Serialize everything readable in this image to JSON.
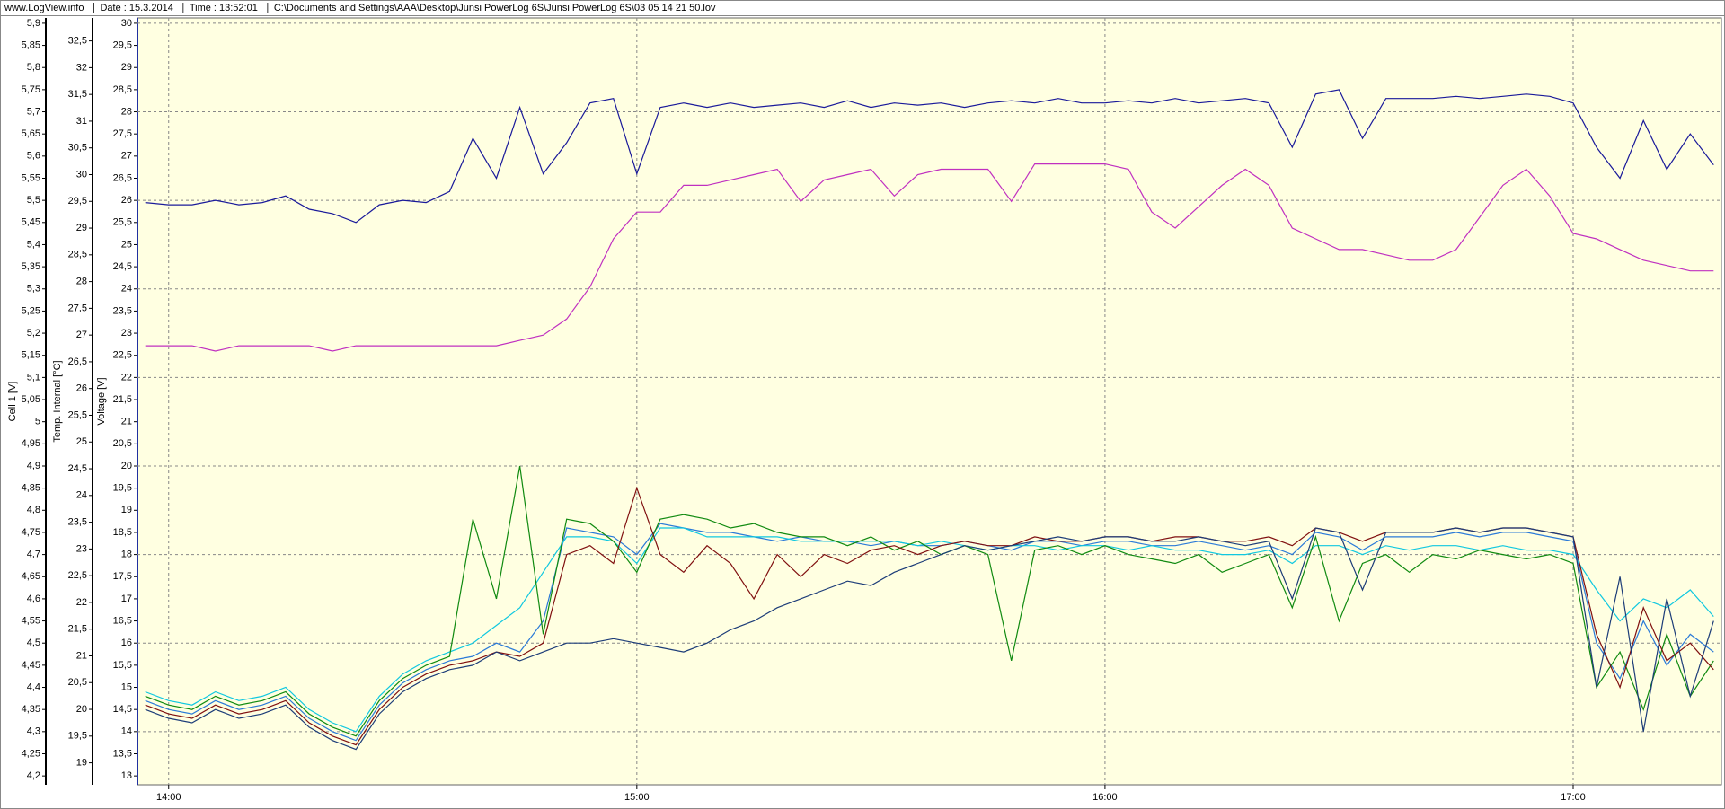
{
  "chart_data": {
    "type": "line",
    "header": [
      "www.LogView.info",
      "Date : 15.3.2014",
      "Time : 13:52:01",
      "C:\\Documents and Settings\\AAA\\Desktop\\Junsi PowerLog 6S\\Junsi PowerLog 6S\\03 05 14 21 50.lov"
    ],
    "background": "#ffffe1",
    "grid": true,
    "x": [
      "13:57",
      "14:00",
      "14:03",
      "14:06",
      "14:09",
      "14:12",
      "14:15",
      "14:18",
      "14:21",
      "14:24",
      "14:27",
      "14:30",
      "14:33",
      "14:36",
      "14:39",
      "14:42",
      "14:45",
      "14:48",
      "14:51",
      "14:54",
      "14:57",
      "15:00",
      "15:03",
      "15:06",
      "15:09",
      "15:12",
      "15:15",
      "15:18",
      "15:21",
      "15:24",
      "15:27",
      "15:30",
      "15:33",
      "15:36",
      "15:39",
      "15:42",
      "15:45",
      "15:48",
      "15:51",
      "15:54",
      "15:57",
      "16:00",
      "16:03",
      "16:06",
      "16:09",
      "16:12",
      "16:15",
      "16:18",
      "16:21",
      "16:24",
      "16:27",
      "16:30",
      "16:33",
      "16:36",
      "16:39",
      "16:42",
      "16:45",
      "16:48",
      "16:51",
      "16:54",
      "16:57",
      "17:00",
      "17:03",
      "17:06",
      "17:09",
      "17:12",
      "17:15",
      "17:18"
    ],
    "xlim": [
      "13:56",
      "17:19"
    ],
    "xticks": [
      "14:00",
      "15:00",
      "16:00",
      "17:00"
    ],
    "axes": [
      {
        "label": "Cell 1 [V]",
        "color": "#2a8ad0",
        "ylim": [
          4.18,
          5.912
        ],
        "yticks": [
          {
            "value": 4.2,
            "label": "4,2"
          },
          {
            "value": 4.25,
            "label": "4,25"
          },
          {
            "value": 4.3,
            "label": "4,3"
          },
          {
            "value": 4.35,
            "label": "4,35"
          },
          {
            "value": 4.4,
            "label": "4,4"
          },
          {
            "value": 4.45,
            "label": "4,45"
          },
          {
            "value": 4.5,
            "label": "4,5"
          },
          {
            "value": 4.55,
            "label": "4,55"
          },
          {
            "value": 4.6,
            "label": "4,6"
          },
          {
            "value": 4.65,
            "label": "4,65"
          },
          {
            "value": 4.7,
            "label": "4,7"
          },
          {
            "value": 4.75,
            "label": "4,75"
          },
          {
            "value": 4.8,
            "label": "4,8"
          },
          {
            "value": 4.85,
            "label": "4,85"
          },
          {
            "value": 4.9,
            "label": "4,9"
          },
          {
            "value": 4.95,
            "label": "4,95"
          },
          5,
          {
            "value": 5.05,
            "label": "5,05"
          },
          {
            "value": 5.1,
            "label": "5,1"
          },
          {
            "value": 5.15,
            "label": "5,15"
          },
          {
            "value": 5.2,
            "label": "5,2"
          },
          {
            "value": 5.25,
            "label": "5,25"
          },
          {
            "value": 5.3,
            "label": "5,3"
          },
          {
            "value": 5.35,
            "label": "5,35"
          },
          {
            "value": 5.4,
            "label": "5,4"
          },
          {
            "value": 5.45,
            "label": "5,45"
          },
          {
            "value": 5.5,
            "label": "5,5"
          },
          {
            "value": 5.55,
            "label": "5,55"
          },
          {
            "value": 5.6,
            "label": "5,6"
          },
          {
            "value": 5.65,
            "label": "5,65"
          },
          {
            "value": 5.7,
            "label": "5,7"
          },
          {
            "value": 5.75,
            "label": "5,75"
          },
          {
            "value": 5.8,
            "label": "5,8"
          },
          {
            "value": 5.85,
            "label": "5,85"
          },
          {
            "value": 5.9,
            "label": "5,9"
          }
        ]
      },
      {
        "label": "Temp. Internal [°C]",
        "color": "#c030c0",
        "ylim": [
          18.59,
          32.93
        ],
        "yticks": [
          19,
          {
            "value": 19.5,
            "label": "19,5"
          },
          20,
          {
            "value": 20.5,
            "label": "20,5"
          },
          21,
          {
            "value": 21.5,
            "label": "21,5"
          },
          22,
          {
            "value": 22.5,
            "label": "22,5"
          },
          23,
          {
            "value": 23.5,
            "label": "23,5"
          },
          24,
          {
            "value": 24.5,
            "label": "24,5"
          },
          25,
          {
            "value": 25.5,
            "label": "25,5"
          },
          26,
          {
            "value": 26.5,
            "label": "26,5"
          },
          27,
          {
            "value": 27.5,
            "label": "27,5"
          },
          28,
          {
            "value": 28.5,
            "label": "28,5"
          },
          29,
          {
            "value": 29.5,
            "label": "29,5"
          },
          30,
          {
            "value": 30.5,
            "label": "30,5"
          },
          31,
          {
            "value": 31.5,
            "label": "31,5"
          },
          32,
          {
            "value": 32.5,
            "label": "32,5"
          }
        ]
      },
      {
        "label": "Voltage [V]",
        "color": "#2030a0",
        "ylim": [
          12.8,
          30.12
        ],
        "yticks": [
          13,
          {
            "value": 13.5,
            "label": "13,5"
          },
          14,
          {
            "value": 14.5,
            "label": "14,5"
          },
          15,
          {
            "value": 15.5,
            "label": "15,5"
          },
          16,
          {
            "value": 16.5,
            "label": "16,5"
          },
          17,
          {
            "value": 17.5,
            "label": "17,5"
          },
          18,
          {
            "value": 18.5,
            "label": "18,5"
          },
          19,
          {
            "value": 19.5,
            "label": "19,5"
          },
          20,
          {
            "value": 20.5,
            "label": "20,5"
          },
          21,
          {
            "value": 21.5,
            "label": "21,5"
          },
          22,
          {
            "value": 22.5,
            "label": "22,5"
          },
          23,
          {
            "value": 23.5,
            "label": "23,5"
          },
          24,
          {
            "value": 24.5,
            "label": "24,5"
          },
          25,
          {
            "value": 25.5,
            "label": "25,5"
          },
          26,
          {
            "value": 26.5,
            "label": "26,5"
          },
          27,
          {
            "value": 27.5,
            "label": "27,5"
          },
          28,
          {
            "value": 28.5,
            "label": "28,5"
          },
          29,
          {
            "value": 29.5,
            "label": "29,5"
          },
          30
        ]
      }
    ],
    "series": [
      {
        "color": "#2a7ad8",
        "axis": 0,
        "values": [
          4.37,
          4.35,
          4.34,
          4.37,
          4.35,
          4.36,
          4.38,
          4.33,
          4.3,
          4.28,
          4.36,
          4.41,
          4.44,
          4.46,
          4.47,
          4.5,
          4.48,
          4.55,
          4.76,
          4.75,
          4.74,
          4.7,
          4.77,
          4.76,
          4.75,
          4.75,
          4.74,
          4.73,
          4.74,
          4.73,
          4.73,
          4.72,
          4.73,
          4.72,
          4.72,
          4.73,
          4.72,
          4.71,
          4.73,
          4.73,
          4.72,
          4.73,
          4.73,
          4.72,
          4.72,
          4.73,
          4.72,
          4.71,
          4.72,
          4.7,
          4.75,
          4.74,
          4.71,
          4.74,
          4.74,
          4.74,
          4.75,
          4.74,
          4.75,
          4.75,
          4.74,
          4.73,
          4.5,
          4.42,
          4.55,
          4.45,
          4.52,
          4.48
        ]
      },
      {
        "color": "#10c8e0",
        "axis": 0,
        "values": [
          4.39,
          4.37,
          4.36,
          4.39,
          4.37,
          4.38,
          4.4,
          4.35,
          4.32,
          4.3,
          4.38,
          4.43,
          4.46,
          4.48,
          4.5,
          4.54,
          4.58,
          4.66,
          4.74,
          4.74,
          4.73,
          4.68,
          4.76,
          4.76,
          4.74,
          4.74,
          4.74,
          4.74,
          4.73,
          4.73,
          4.73,
          4.73,
          4.73,
          4.72,
          4.73,
          4.72,
          4.71,
          4.72,
          4.72,
          4.71,
          4.72,
          4.72,
          4.71,
          4.72,
          4.71,
          4.71,
          4.7,
          4.7,
          4.71,
          4.68,
          4.72,
          4.72,
          4.7,
          4.72,
          4.71,
          4.72,
          4.72,
          4.71,
          4.72,
          4.71,
          4.71,
          4.7,
          4.62,
          4.55,
          4.6,
          4.58,
          4.62,
          4.56
        ]
      },
      {
        "color": "#108a10",
        "axis": 0,
        "values": [
          4.38,
          4.36,
          4.35,
          4.38,
          4.36,
          4.37,
          4.39,
          4.34,
          4.31,
          4.29,
          4.37,
          4.42,
          4.45,
          4.47,
          4.78,
          4.6,
          4.9,
          4.52,
          4.78,
          4.77,
          4.73,
          4.66,
          4.78,
          4.79,
          4.78,
          4.76,
          4.77,
          4.75,
          4.74,
          4.74,
          4.72,
          4.74,
          4.71,
          4.73,
          4.7,
          4.72,
          4.7,
          4.46,
          4.71,
          4.72,
          4.7,
          4.72,
          4.7,
          4.69,
          4.68,
          4.7,
          4.66,
          4.68,
          4.7,
          4.58,
          4.74,
          4.55,
          4.68,
          4.7,
          4.66,
          4.7,
          4.69,
          4.71,
          4.7,
          4.69,
          4.7,
          4.68,
          4.4,
          4.48,
          4.35,
          4.52,
          4.38,
          4.46
        ]
      },
      {
        "color": "#801010",
        "axis": 0,
        "values": [
          4.36,
          4.34,
          4.33,
          4.36,
          4.34,
          4.35,
          4.37,
          4.32,
          4.29,
          4.27,
          4.35,
          4.4,
          4.43,
          4.45,
          4.46,
          4.48,
          4.47,
          4.5,
          4.7,
          4.72,
          4.68,
          4.85,
          4.7,
          4.66,
          4.72,
          4.68,
          4.6,
          4.7,
          4.65,
          4.7,
          4.68,
          4.71,
          4.72,
          4.7,
          4.72,
          4.73,
          4.72,
          4.72,
          4.74,
          4.73,
          4.73,
          4.74,
          4.74,
          4.73,
          4.74,
          4.74,
          4.73,
          4.73,
          4.74,
          4.72,
          4.76,
          4.75,
          4.73,
          4.75,
          4.75,
          4.75,
          4.76,
          4.75,
          4.76,
          4.76,
          4.75,
          4.74,
          4.52,
          4.4,
          4.58,
          4.46,
          4.5,
          4.44
        ]
      },
      {
        "color": "#1c3c78",
        "axis": 0,
        "values": [
          4.35,
          4.33,
          4.32,
          4.35,
          4.33,
          4.34,
          4.36,
          4.31,
          4.28,
          4.26,
          4.34,
          4.39,
          4.42,
          4.44,
          4.45,
          4.48,
          4.46,
          4.48,
          4.5,
          4.5,
          4.51,
          4.5,
          4.49,
          4.48,
          4.5,
          4.53,
          4.55,
          4.58,
          4.6,
          4.62,
          4.64,
          4.63,
          4.66,
          4.68,
          4.7,
          4.72,
          4.71,
          4.72,
          4.73,
          4.74,
          4.73,
          4.74,
          4.74,
          4.73,
          4.73,
          4.74,
          4.73,
          4.72,
          4.73,
          4.6,
          4.76,
          4.75,
          4.62,
          4.75,
          4.75,
          4.75,
          4.76,
          4.75,
          4.76,
          4.76,
          4.75,
          4.74,
          4.4,
          4.65,
          4.3,
          4.6,
          4.38,
          4.55
        ]
      },
      {
        "color": "#c030c0",
        "axis": 1,
        "values": [
          26.8,
          26.8,
          26.8,
          26.7,
          26.8,
          26.8,
          26.8,
          26.8,
          26.7,
          26.8,
          26.8,
          26.8,
          26.8,
          26.8,
          26.8,
          26.8,
          26.9,
          27.0,
          27.3,
          27.9,
          28.8,
          29.3,
          29.3,
          29.8,
          29.8,
          29.9,
          30.0,
          30.1,
          29.5,
          29.9,
          30.0,
          30.1,
          29.6,
          30.0,
          30.1,
          30.1,
          30.1,
          29.5,
          30.2,
          30.2,
          30.2,
          30.2,
          30.1,
          29.3,
          29.0,
          29.4,
          29.8,
          30.1,
          29.8,
          29.0,
          28.8,
          28.6,
          28.6,
          28.5,
          28.4,
          28.4,
          28.6,
          29.2,
          29.8,
          30.1,
          29.6,
          28.9,
          28.8,
          28.6,
          28.4,
          28.3,
          28.2,
          28.2
        ]
      },
      {
        "color": "#1a1a9a",
        "axis": 2,
        "values": [
          25.95,
          25.9,
          25.9,
          26.0,
          25.9,
          25.95,
          26.1,
          25.8,
          25.7,
          25.5,
          25.9,
          26.0,
          25.95,
          26.2,
          27.4,
          26.5,
          28.1,
          26.6,
          27.3,
          28.2,
          28.3,
          26.6,
          28.1,
          28.2,
          28.1,
          28.2,
          28.1,
          28.15,
          28.2,
          28.1,
          28.25,
          28.1,
          28.2,
          28.15,
          28.2,
          28.1,
          28.2,
          28.25,
          28.2,
          28.3,
          28.2,
          28.2,
          28.25,
          28.2,
          28.3,
          28.2,
          28.25,
          28.3,
          28.2,
          27.2,
          28.4,
          28.5,
          27.4,
          28.3,
          28.3,
          28.3,
          28.35,
          28.3,
          28.35,
          28.4,
          28.35,
          28.2,
          27.2,
          26.5,
          27.8,
          26.7,
          27.5,
          26.8
        ]
      }
    ]
  }
}
